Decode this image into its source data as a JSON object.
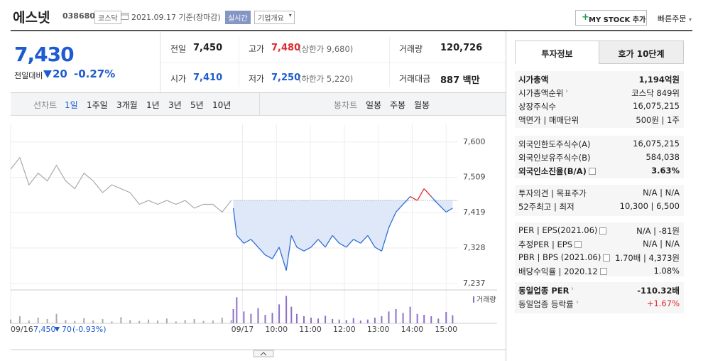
{
  "header": {
    "name": "에스넷",
    "code": "038680",
    "market": "코스닥",
    "date": "2021.09.17 기준(장마감)",
    "realtime": "실시간",
    "company_menu": "기업개요",
    "mystock": "MY STOCK 추가",
    "quick_order": "빠른주문"
  },
  "price": {
    "current": "7,430",
    "change_label": "전일대비",
    "change": "20",
    "change_pct": "-0.27%"
  },
  "quotes": [
    {
      "label": "전일",
      "value": "7,450"
    },
    {
      "label": "고가",
      "value": "7,480",
      "note": "(상한가 9,680)",
      "color": "#e0282e"
    },
    {
      "label": "거래량",
      "value": "120,726"
    },
    {
      "label": "시가",
      "value": "7,410",
      "color": "#1f5bd0"
    },
    {
      "label": "저가",
      "value": "7,250",
      "note": "(하한가 5,220)",
      "color": "#1f5bd0"
    },
    {
      "label": "거래대금",
      "value": "887 백만"
    }
  ],
  "chart_tabs": {
    "line_label": "선차트",
    "periods": [
      "1일",
      "1주일",
      "3개월",
      "1년",
      "3년",
      "5년",
      "10년"
    ],
    "candle_label": "봉차트",
    "candles": [
      "일봉",
      "주봉",
      "월봉"
    ]
  },
  "chart_data": {
    "type": "line",
    "xlim": [
      2.17,
      15.35
    ],
    "xticks": [
      {
        "value": 2.17,
        "label": "09/16"
      },
      {
        "value": 9,
        "label": "09/17"
      },
      {
        "value": 10,
        "label": "10:00"
      },
      {
        "value": 11,
        "label": "11:00"
      },
      {
        "value": 12,
        "label": "12:00"
      },
      {
        "value": 13,
        "label": "13:00"
      },
      {
        "value": 14,
        "label": "14:00"
      },
      {
        "value": 15,
        "label": "15:00"
      }
    ],
    "ylim": [
      7222,
      7627
    ],
    "yticks": [
      {
        "value": 7600,
        "label": "7,600"
      },
      {
        "value": 7509,
        "label": "7,509"
      },
      {
        "value": 7419,
        "label": "7,419"
      },
      {
        "value": 7328,
        "label": "7,328"
      },
      {
        "value": 7237,
        "label": "7,237"
      }
    ],
    "grid": true,
    "base": 7450,
    "up_color": "#e0282e",
    "fill_color": "#dfe8f8",
    "series": [
      {
        "color": "#aaaaaa",
        "x": [
          2.17,
          2.44,
          2.71,
          2.98,
          3.25,
          3.52,
          3.79,
          4.06,
          4.33,
          4.6,
          4.88,
          5.15,
          5.42,
          5.69,
          5.96,
          6.23,
          6.5,
          6.77,
          7.04,
          7.31,
          7.58,
          7.85,
          8.13,
          8.4,
          8.67
        ],
        "values": [
          7530,
          7560,
          7490,
          7520,
          7500,
          7540,
          7500,
          7480,
          7520,
          7500,
          7470,
          7490,
          7480,
          7470,
          7440,
          7450,
          7440,
          7450,
          7440,
          7450,
          7430,
          7440,
          7440,
          7420,
          7450
        ]
      },
      {
        "color": "#2f6fd6",
        "x": [
          8.73,
          8.83,
          9.04,
          9.25,
          9.46,
          9.67,
          9.88,
          10.08,
          10.29,
          10.44,
          10.6,
          10.81,
          11.02,
          11.23,
          11.44,
          11.65,
          11.85,
          12.06,
          12.27,
          12.48,
          12.69,
          12.9,
          13.1,
          13.31,
          13.52,
          13.73,
          13.94,
          14.15,
          14.35,
          14.56,
          14.77,
          15.0,
          15.19
        ],
        "values": [
          7430,
          7360,
          7340,
          7350,
          7330,
          7310,
          7300,
          7330,
          7270,
          7360,
          7330,
          7320,
          7330,
          7350,
          7330,
          7360,
          7340,
          7330,
          7350,
          7340,
          7360,
          7330,
          7320,
          7380,
          7420,
          7440,
          7460,
          7450,
          7480,
          7460,
          7440,
          7420,
          7430
        ]
      }
    ],
    "volume": {
      "label": "거래량",
      "color": "#8e6fc9",
      "ylim": [
        0,
        6000
      ],
      "series": [
        {
          "color": "#aaaaaa",
          "values": [
            800,
            1500,
            600,
            1200,
            900,
            2000,
            700,
            500,
            1100,
            600,
            900,
            400,
            1300,
            700,
            500,
            800,
            600,
            1000,
            400,
            700,
            900,
            500,
            600,
            1200,
            700
          ]
        },
        {
          "color": "#8e6fc9",
          "values": [
            3000,
            5500,
            2500,
            2000,
            3200,
            1800,
            2200,
            4000,
            5800,
            3500,
            2000,
            1500,
            1200,
            1000,
            1600,
            900,
            800,
            700,
            1100,
            600,
            800,
            1200,
            1500,
            2500,
            3000,
            2200,
            3500,
            2000,
            1800,
            1500,
            1000,
            2400,
            1700
          ]
        }
      ]
    }
  },
  "prev_summary": {
    "date": "09/16",
    "price": "7,450",
    "change": "70",
    "pct": "(-0.93%)"
  },
  "info_tabs": [
    "투자정보",
    "호가 10단계"
  ],
  "info_groups": [
    [
      {
        "label": "시가총액",
        "value": "1,194억원",
        "bold": true
      },
      {
        "label": "시가총액순위",
        "arrow": true,
        "value": "코스닥 849위"
      },
      {
        "label": "상장주식수",
        "value": "16,075,215"
      },
      {
        "label": "액면가 | 매매단위",
        "value": "500원 | 1주"
      }
    ],
    [
      {
        "label": "외국인한도주식수(A)",
        "value": "16,075,215"
      },
      {
        "label": "외국인보유주식수(B)",
        "value": "584,038"
      },
      {
        "label": "외국인소진율(B/A)",
        "icon": true,
        "value": "3.63%",
        "bold": true
      }
    ],
    [
      {
        "label": "투자의견 | 목표주가",
        "value": "N/A | N/A"
      },
      {
        "label": "52주최고 | 최저",
        "value": "10,300 | 6,500"
      }
    ],
    [
      {
        "label": "PER | EPS(2021.06)",
        "icon": true,
        "value": "N/A | -81원"
      },
      {
        "label": "추정PER | EPS",
        "icon": true,
        "value": "N/A | N/A"
      },
      {
        "label": "PBR | BPS (2021.06)",
        "icon": true,
        "value": "1.70배 | 4,373원"
      },
      {
        "label": "배당수익률 | 2020.12",
        "icon": true,
        "value": "1.08%"
      }
    ],
    [
      {
        "label": "동일업종 PER",
        "arrow": true,
        "value": "-110.32배",
        "bold": true
      },
      {
        "label": "동일업종 등락률",
        "arrow": true,
        "value": "+1.67%",
        "color": "#e0282e"
      }
    ]
  ]
}
